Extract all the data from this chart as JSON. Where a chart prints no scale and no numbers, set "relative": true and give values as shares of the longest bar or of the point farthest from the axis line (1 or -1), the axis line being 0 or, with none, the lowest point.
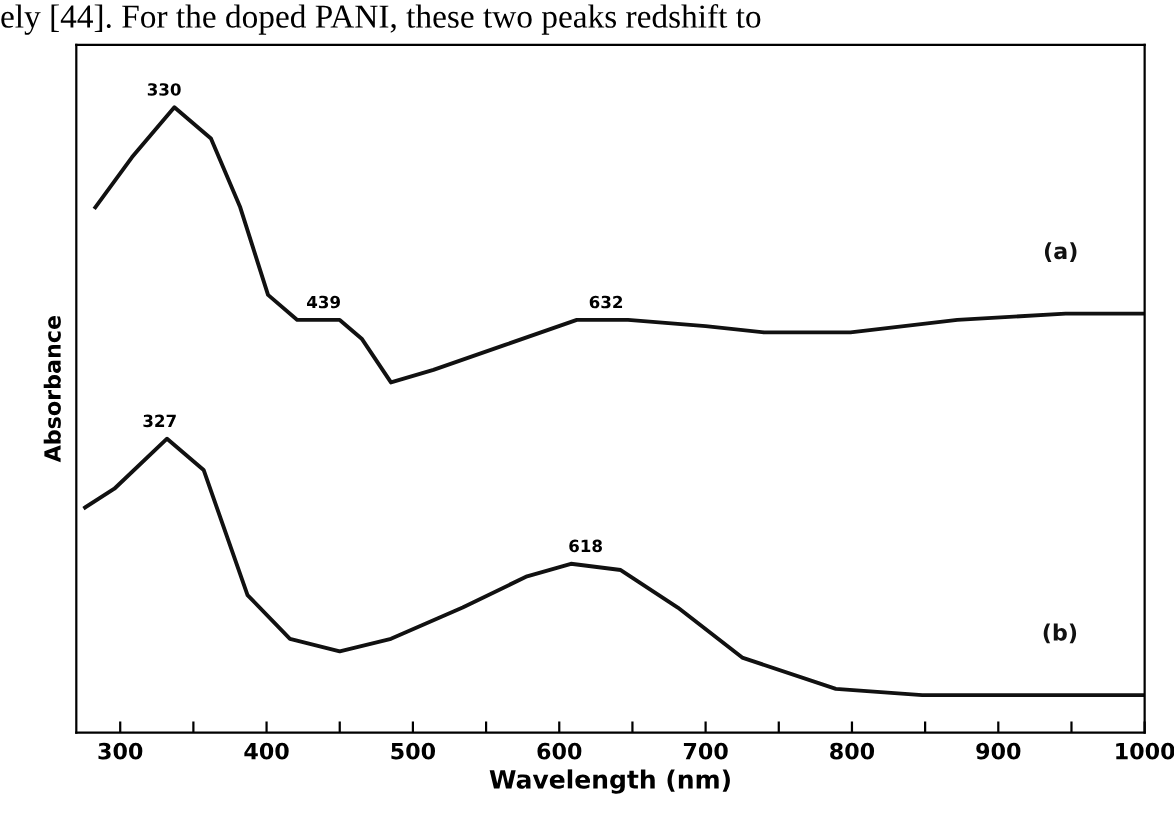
{
  "chart_data": {
    "type": "line",
    "relative": true,
    "xlabel": "Wavelength (nm)",
    "ylabel": "Absorbance",
    "xlim": [
      270,
      1000
    ],
    "xticks": [
      300,
      {
        "value": 350,
        "label": null
      },
      400,
      {
        "value": 450,
        "label": null
      },
      500,
      {
        "value": 550,
        "label": null
      },
      600,
      {
        "value": 650,
        "label": null
      },
      700,
      {
        "value": 750,
        "label": null
      },
      800,
      {
        "value": 850,
        "label": null
      },
      900,
      {
        "value": 950,
        "label": null
      },
      1000
    ],
    "tick_labels": "x",
    "grid": false,
    "legend": false,
    "marker": "none",
    "line_style": "solid",
    "series": [
      {
        "name": "(a)",
        "color": "#111111",
        "x": [
          283,
          308,
          337,
          362,
          382,
          401,
          421,
          450,
          465,
          485,
          514,
          563,
          612,
          647,
          700,
          740,
          799,
          872,
          946,
          1000
        ],
        "values": [
          0.84,
          0.92,
          1.0,
          0.95,
          0.84,
          0.7,
          0.66,
          0.66,
          0.63,
          0.56,
          0.58,
          0.62,
          0.66,
          0.66,
          0.65,
          0.64,
          0.64,
          0.66,
          0.67,
          0.67
        ]
      },
      {
        "name": "(b)",
        "color": "#111111",
        "x": [
          276,
          296,
          332,
          357,
          387,
          416,
          450,
          485,
          534,
          578,
          608,
          642,
          681,
          725,
          789,
          848,
          1000
        ],
        "values": [
          0.36,
          0.39,
          0.47,
          0.42,
          0.22,
          0.15,
          0.13,
          0.15,
          0.2,
          0.25,
          0.27,
          0.26,
          0.2,
          0.12,
          0.07,
          0.06,
          0.06
        ]
      }
    ],
    "annotations": [
      {
        "text": "330",
        "x": 330,
        "y": 1.0
      },
      {
        "text": "439",
        "x": 439,
        "y": 0.66
      },
      {
        "text": "632",
        "x": 632,
        "y": 0.66
      },
      {
        "text": "327",
        "x": 327,
        "y": 0.47
      },
      {
        "text": "618",
        "x": 618,
        "y": 0.27
      },
      "ely [44]. For the doped PANI, these two peaks redshift to"
    ]
  }
}
